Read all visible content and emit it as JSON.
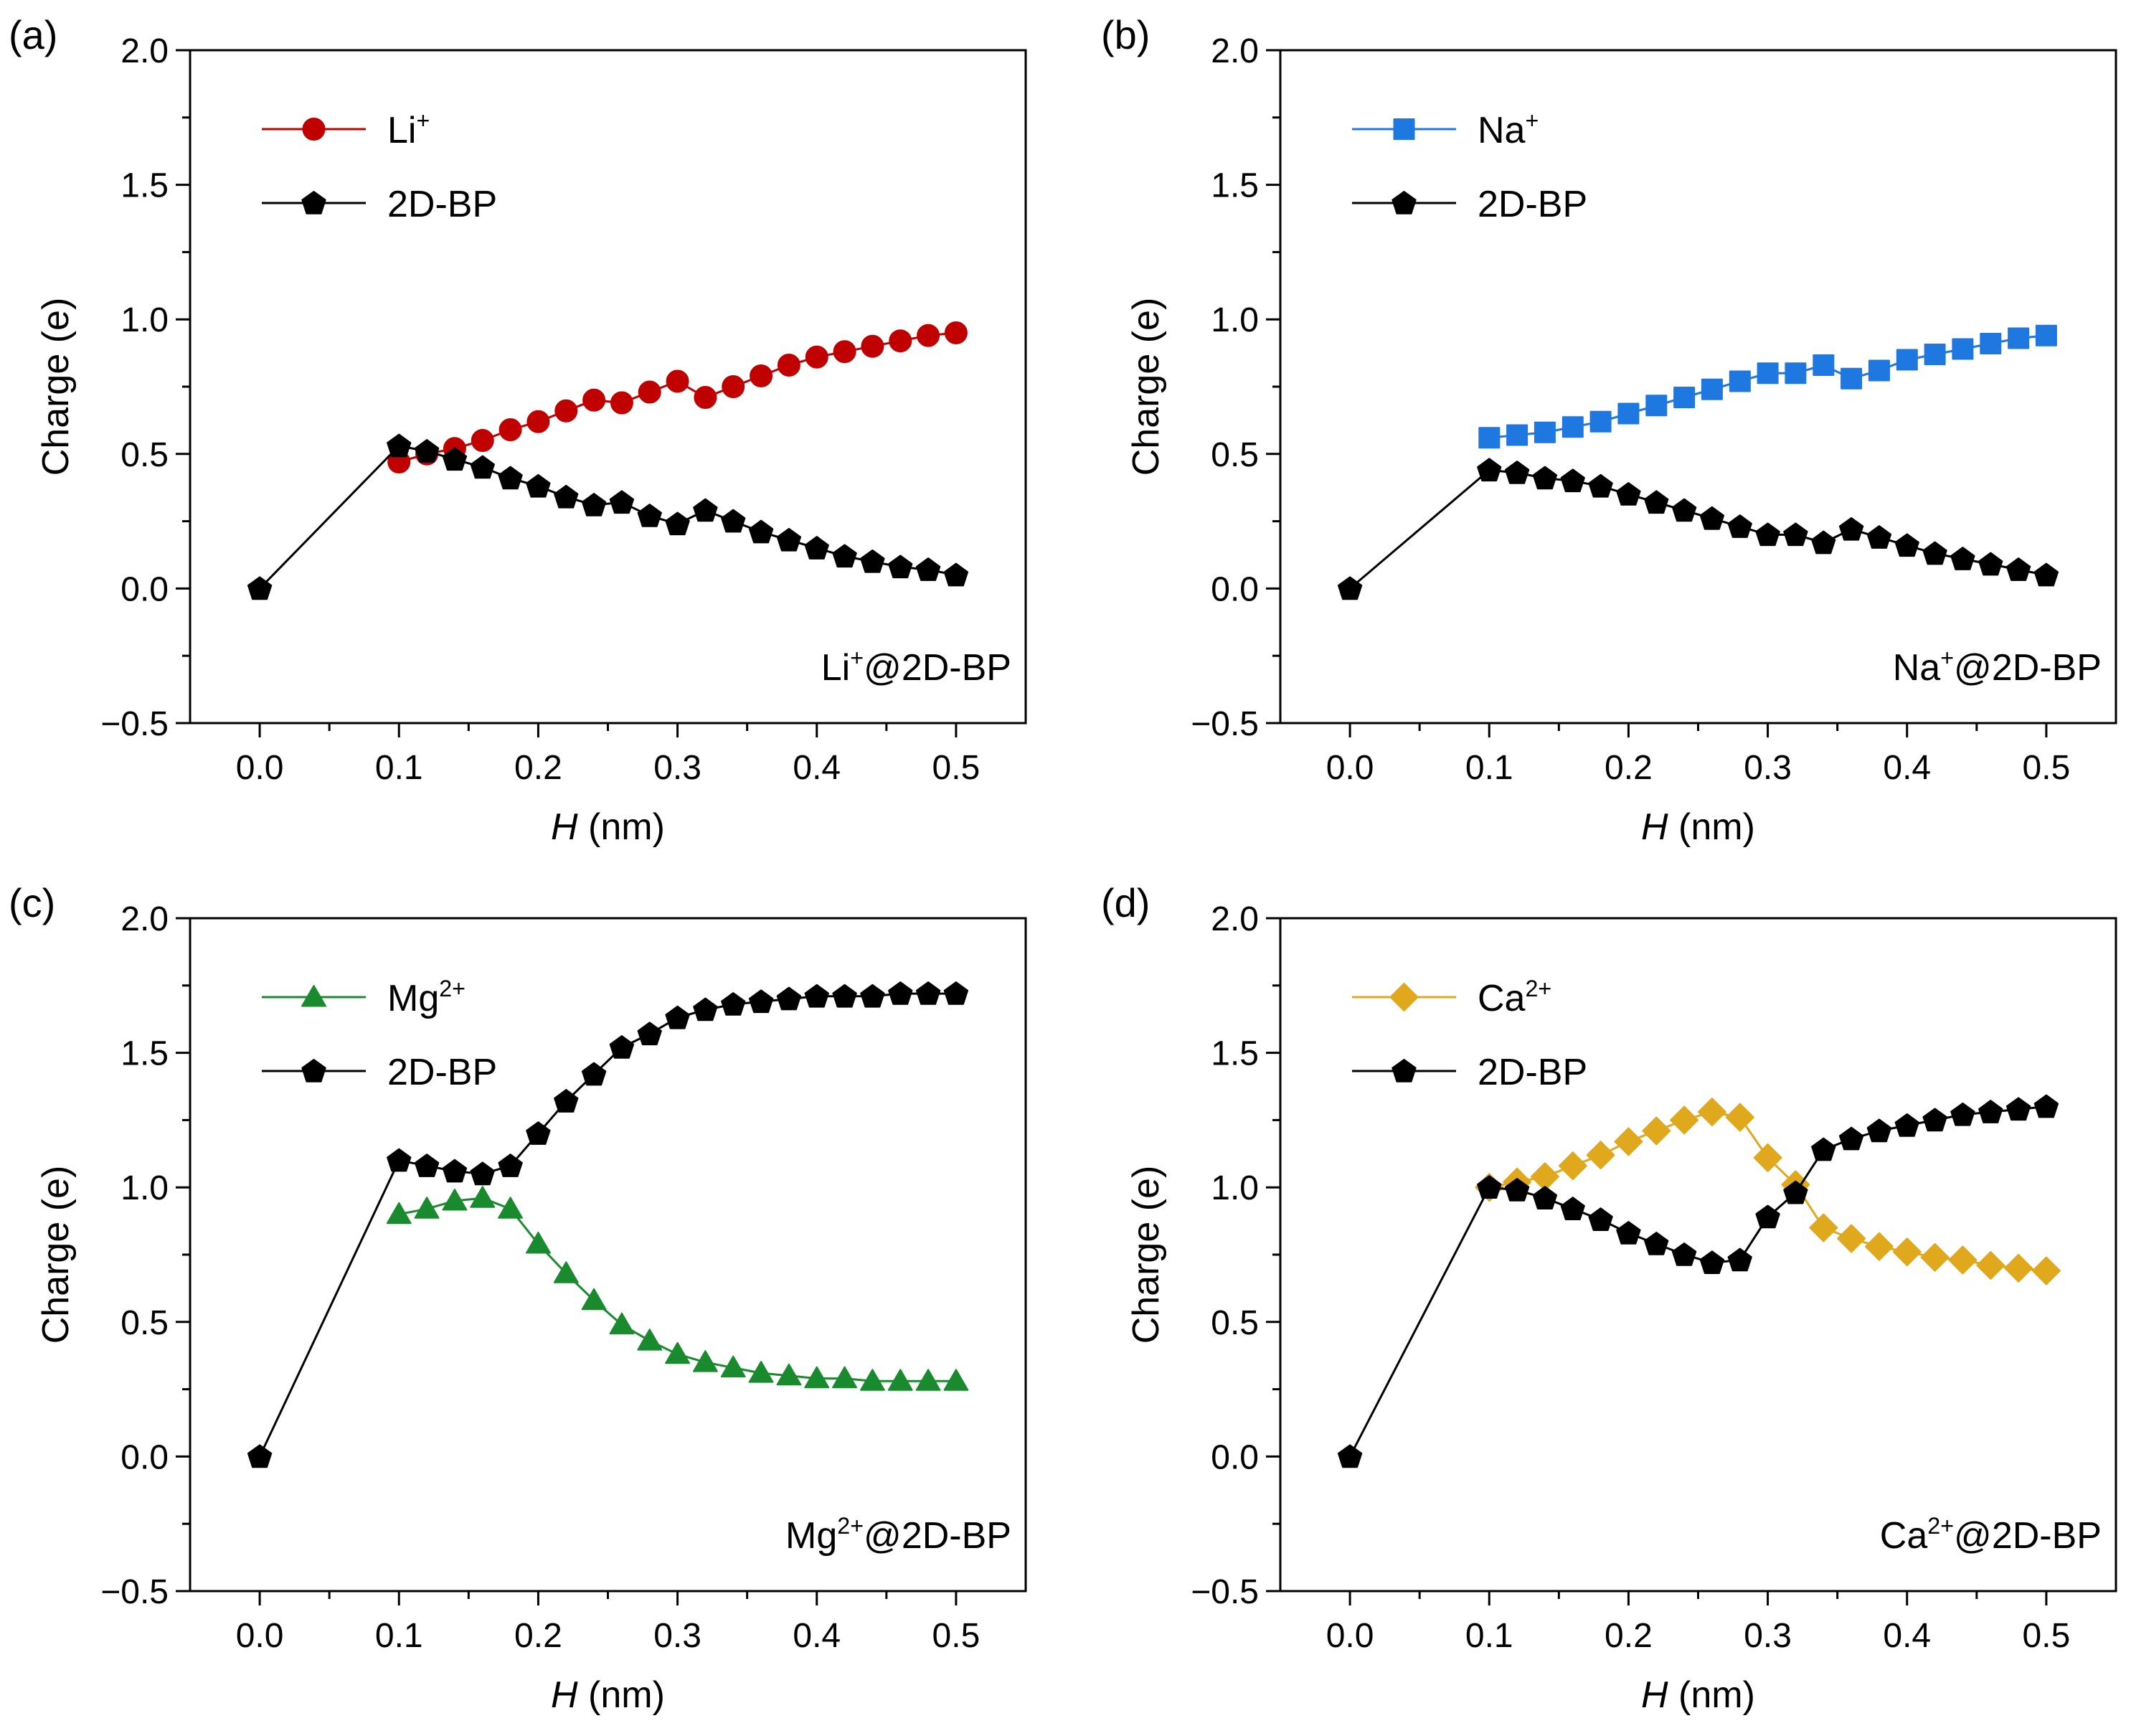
{
  "figure": {
    "panels": [
      "(a)",
      "(b)",
      "(c)",
      "(d)"
    ]
  },
  "colors": {
    "li": "#c00000",
    "na": "#1f77e0",
    "mg": "#1a8a2e",
    "ca": "#e0a81c",
    "bp": "#000000"
  },
  "chart_data": [
    {
      "type": "line",
      "panel": "(a)",
      "xlabel_italic": "H",
      "xlabel_rest": " (nm)",
      "ylabel": "Charge (e)",
      "xlim": [
        -0.05,
        0.55
      ],
      "ylim": [
        -0.5,
        2.0
      ],
      "xticks": [
        "0.0",
        "0.1",
        "0.2",
        "0.3",
        "0.4",
        "0.5"
      ],
      "yticks": [
        "−0.5",
        "0.0",
        "0.5",
        "1.0",
        "1.5",
        "2.0"
      ],
      "annotation": {
        "base": "Li",
        "sup": "+",
        "rest": "@2D-BP"
      },
      "legend_position": "top-left",
      "series": [
        {
          "name": "Li",
          "sup": "+",
          "marker": "circle",
          "colorKey": "li",
          "x": [
            0.1,
            0.12,
            0.14,
            0.16,
            0.18,
            0.2,
            0.22,
            0.24,
            0.26,
            0.28,
            0.3,
            0.32,
            0.34,
            0.36,
            0.38,
            0.4,
            0.42,
            0.44,
            0.46,
            0.48,
            0.5
          ],
          "y": [
            0.47,
            0.5,
            0.52,
            0.55,
            0.59,
            0.62,
            0.66,
            0.7,
            0.69,
            0.73,
            0.77,
            0.71,
            0.75,
            0.79,
            0.83,
            0.86,
            0.88,
            0.9,
            0.92,
            0.94,
            0.95
          ]
        },
        {
          "name": "2D-BP",
          "sup": "",
          "marker": "pentagon",
          "colorKey": "bp",
          "x": [
            0.0,
            0.1,
            0.12,
            0.14,
            0.16,
            0.18,
            0.2,
            0.22,
            0.24,
            0.26,
            0.28,
            0.3,
            0.32,
            0.34,
            0.36,
            0.38,
            0.4,
            0.42,
            0.44,
            0.46,
            0.48,
            0.5
          ],
          "y": [
            0.0,
            0.53,
            0.51,
            0.48,
            0.45,
            0.41,
            0.38,
            0.34,
            0.31,
            0.32,
            0.27,
            0.24,
            0.29,
            0.25,
            0.21,
            0.18,
            0.15,
            0.12,
            0.1,
            0.08,
            0.07,
            0.05
          ]
        }
      ]
    },
    {
      "type": "line",
      "panel": "(b)",
      "xlabel_italic": "H",
      "xlabel_rest": " (nm)",
      "ylabel": "Charge (e)",
      "xlim": [
        -0.05,
        0.55
      ],
      "ylim": [
        -0.5,
        2.0
      ],
      "xticks": [
        "0.0",
        "0.1",
        "0.2",
        "0.3",
        "0.4",
        "0.5"
      ],
      "yticks": [
        "−0.5",
        "0.0",
        "0.5",
        "1.0",
        "1.5",
        "2.0"
      ],
      "annotation": {
        "base": "Na",
        "sup": "+",
        "rest": "@2D-BP"
      },
      "legend_position": "top-left",
      "series": [
        {
          "name": "Na",
          "sup": "+",
          "marker": "square",
          "colorKey": "na",
          "x": [
            0.1,
            0.12,
            0.14,
            0.16,
            0.18,
            0.2,
            0.22,
            0.24,
            0.26,
            0.28,
            0.3,
            0.32,
            0.34,
            0.36,
            0.38,
            0.4,
            0.42,
            0.44,
            0.46,
            0.48,
            0.5
          ],
          "y": [
            0.56,
            0.57,
            0.58,
            0.6,
            0.62,
            0.65,
            0.68,
            0.71,
            0.74,
            0.77,
            0.8,
            0.8,
            0.83,
            0.78,
            0.81,
            0.85,
            0.87,
            0.89,
            0.91,
            0.93,
            0.94
          ]
        },
        {
          "name": "2D-BP",
          "sup": "",
          "marker": "pentagon",
          "colorKey": "bp",
          "x": [
            0.0,
            0.1,
            0.12,
            0.14,
            0.16,
            0.18,
            0.2,
            0.22,
            0.24,
            0.26,
            0.28,
            0.3,
            0.32,
            0.34,
            0.36,
            0.38,
            0.4,
            0.42,
            0.44,
            0.46,
            0.48,
            0.5
          ],
          "y": [
            0.0,
            0.44,
            0.43,
            0.41,
            0.4,
            0.38,
            0.35,
            0.32,
            0.29,
            0.26,
            0.23,
            0.2,
            0.2,
            0.17,
            0.22,
            0.19,
            0.16,
            0.13,
            0.11,
            0.09,
            0.07,
            0.05
          ]
        }
      ]
    },
    {
      "type": "line",
      "panel": "(c)",
      "xlabel_italic": "H",
      "xlabel_rest": " (nm)",
      "ylabel": "Charge (e)",
      "xlim": [
        -0.05,
        0.55
      ],
      "ylim": [
        -0.5,
        2.0
      ],
      "xticks": [
        "0.0",
        "0.1",
        "0.2",
        "0.3",
        "0.4",
        "0.5"
      ],
      "yticks": [
        "−0.5",
        "0.0",
        "0.5",
        "1.0",
        "1.5",
        "2.0"
      ],
      "annotation": {
        "base": "Mg",
        "sup": "2+",
        "rest": "@2D-BP"
      },
      "legend_position": "top-left",
      "series": [
        {
          "name": "Mg",
          "sup": "2+",
          "marker": "triangle",
          "colorKey": "mg",
          "x": [
            0.1,
            0.12,
            0.14,
            0.16,
            0.18,
            0.2,
            0.22,
            0.24,
            0.26,
            0.28,
            0.3,
            0.32,
            0.34,
            0.36,
            0.38,
            0.4,
            0.42,
            0.44,
            0.46,
            0.48,
            0.5
          ],
          "y": [
            0.9,
            0.92,
            0.95,
            0.96,
            0.92,
            0.79,
            0.68,
            0.58,
            0.49,
            0.43,
            0.38,
            0.35,
            0.33,
            0.31,
            0.3,
            0.29,
            0.29,
            0.28,
            0.28,
            0.28,
            0.28
          ]
        },
        {
          "name": "2D-BP",
          "sup": "",
          "marker": "pentagon",
          "colorKey": "bp",
          "x": [
            0.0,
            0.1,
            0.12,
            0.14,
            0.16,
            0.18,
            0.2,
            0.22,
            0.24,
            0.26,
            0.28,
            0.3,
            0.32,
            0.34,
            0.36,
            0.38,
            0.4,
            0.42,
            0.44,
            0.46,
            0.48,
            0.5
          ],
          "y": [
            0.0,
            1.1,
            1.08,
            1.06,
            1.05,
            1.08,
            1.2,
            1.32,
            1.42,
            1.52,
            1.57,
            1.63,
            1.66,
            1.68,
            1.69,
            1.7,
            1.71,
            1.71,
            1.71,
            1.72,
            1.72,
            1.72
          ]
        }
      ]
    },
    {
      "type": "line",
      "panel": "(d)",
      "xlabel_italic": "H",
      "xlabel_rest": " (nm)",
      "ylabel": "Charge (e)",
      "xlim": [
        -0.05,
        0.55
      ],
      "ylim": [
        -0.5,
        2.0
      ],
      "xticks": [
        "0.0",
        "0.1",
        "0.2",
        "0.3",
        "0.4",
        "0.5"
      ],
      "yticks": [
        "−0.5",
        "0.0",
        "0.5",
        "1.0",
        "1.5",
        "2.0"
      ],
      "annotation": {
        "base": "Ca",
        "sup": "2+",
        "rest": "@2D-BP"
      },
      "legend_position": "top-left",
      "series": [
        {
          "name": "Ca",
          "sup": "2+",
          "marker": "diamond",
          "colorKey": "ca",
          "x": [
            0.1,
            0.12,
            0.14,
            0.16,
            0.18,
            0.2,
            0.22,
            0.24,
            0.26,
            0.28,
            0.3,
            0.32,
            0.34,
            0.36,
            0.38,
            0.4,
            0.42,
            0.44,
            0.46,
            0.48,
            0.5
          ],
          "y": [
            1.0,
            1.02,
            1.04,
            1.08,
            1.12,
            1.17,
            1.21,
            1.25,
            1.28,
            1.26,
            1.11,
            1.01,
            0.85,
            0.81,
            0.78,
            0.76,
            0.74,
            0.73,
            0.71,
            0.7,
            0.69
          ]
        },
        {
          "name": "2D-BP",
          "sup": "",
          "marker": "pentagon",
          "colorKey": "bp",
          "x": [
            0.0,
            0.1,
            0.12,
            0.14,
            0.16,
            0.18,
            0.2,
            0.22,
            0.24,
            0.26,
            0.28,
            0.3,
            0.32,
            0.34,
            0.36,
            0.38,
            0.4,
            0.42,
            0.44,
            0.46,
            0.48,
            0.5
          ],
          "y": [
            0.0,
            1.0,
            0.99,
            0.96,
            0.92,
            0.88,
            0.83,
            0.79,
            0.75,
            0.72,
            0.73,
            0.89,
            0.98,
            1.14,
            1.18,
            1.21,
            1.23,
            1.25,
            1.27,
            1.28,
            1.29,
            1.3
          ]
        }
      ]
    }
  ]
}
